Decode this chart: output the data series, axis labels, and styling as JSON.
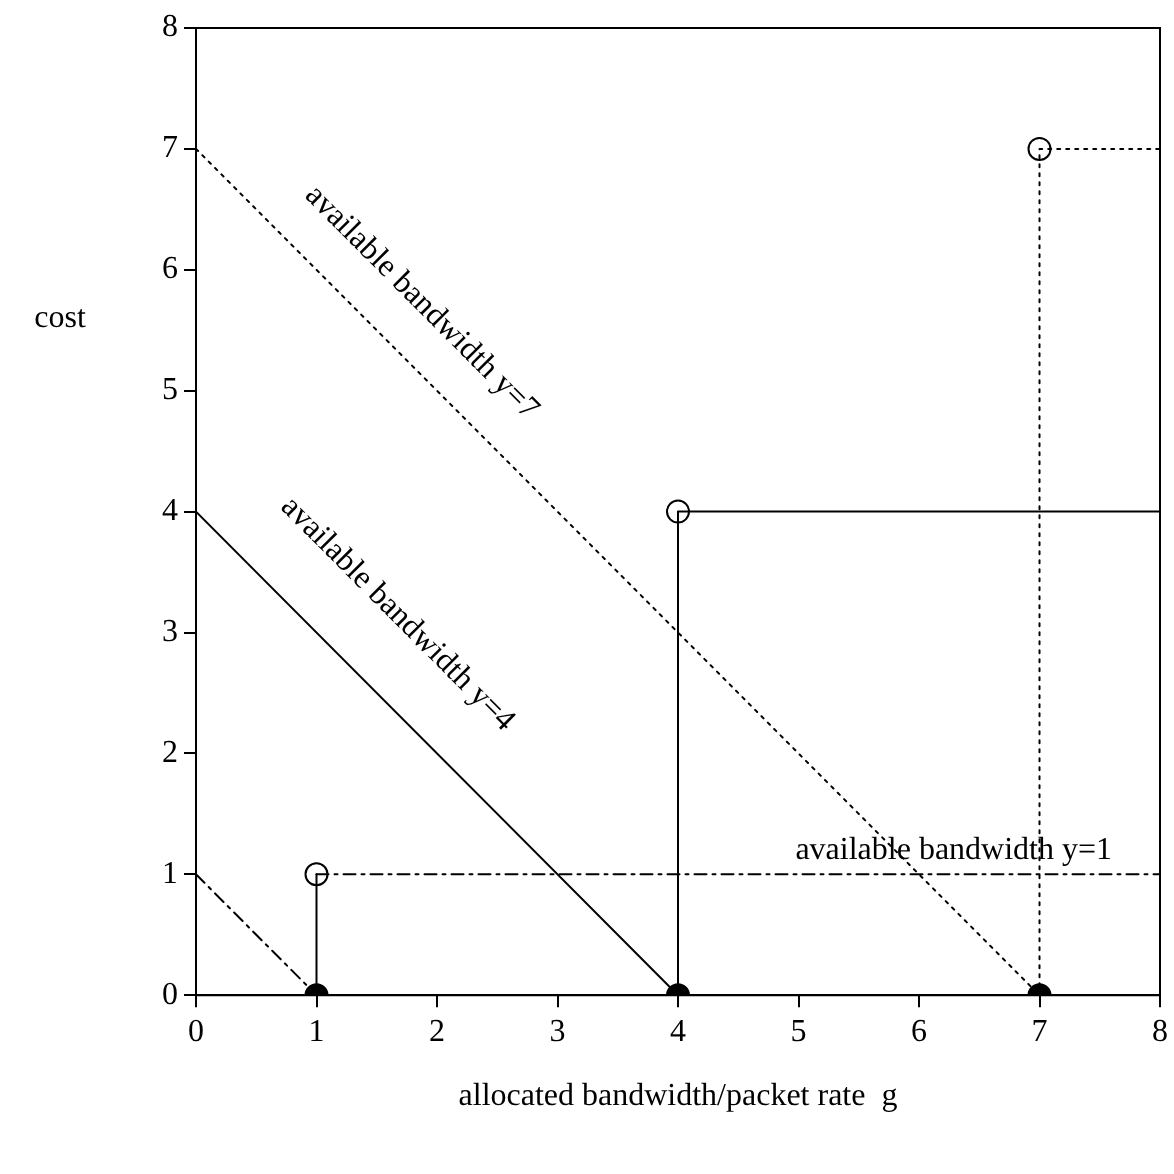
{
  "chart_data": {
    "type": "line",
    "xlabel": "allocated bandwidth/packet rate  g",
    "ylabel": "cost",
    "xlim": [
      0,
      8
    ],
    "ylim": [
      0,
      8
    ],
    "xticks": [
      0,
      1,
      2,
      3,
      4,
      5,
      6,
      7,
      8
    ],
    "yticks": [
      0,
      1,
      2,
      3,
      4,
      5,
      6,
      7,
      8
    ],
    "grid": false,
    "legend": false,
    "series": [
      {
        "color": "#000000",
        "line_style": "dashed",
        "marker": "none",
        "x": [
          0,
          1
        ],
        "values": [
          1,
          0
        ]
      },
      {
        "color": "#000000",
        "line_style": "solid",
        "marker": "none",
        "x": [
          1,
          1
        ],
        "values": [
          0,
          1
        ]
      },
      {
        "color": "#000000",
        "line_style": "dashed",
        "marker": "none",
        "x": [
          1,
          8
        ],
        "values": [
          1,
          1
        ]
      },
      {
        "color": "#000000",
        "line_style": "solid",
        "marker": "none",
        "x": [
          0,
          4
        ],
        "values": [
          4,
          0
        ]
      },
      {
        "color": "#000000",
        "line_style": "solid",
        "marker": "none",
        "x": [
          4,
          4,
          8
        ],
        "values": [
          0,
          4,
          4
        ]
      },
      {
        "color": "#000000",
        "line_style": "dotted",
        "marker": "none",
        "x": [
          0,
          7
        ],
        "values": [
          7,
          0
        ]
      },
      {
        "color": "#000000",
        "line_style": "dotted",
        "marker": "none",
        "x": [
          7,
          7,
          8
        ],
        "values": [
          0,
          7,
          7
        ]
      },
      {
        "type": "scatter",
        "color": "#000000",
        "marker": "circle",
        "x": [
          1,
          4,
          7
        ],
        "values": [
          0,
          0,
          0
        ]
      },
      {
        "type": "scatter",
        "color": "#ffffff",
        "marker": "circle",
        "x": [
          1,
          4,
          7
        ],
        "values": [
          1,
          4,
          7
        ]
      }
    ],
    "annotations": [
      "available bandwidth y=7",
      "available bandwidth y=4",
      "available bandwidth y=1"
    ]
  }
}
